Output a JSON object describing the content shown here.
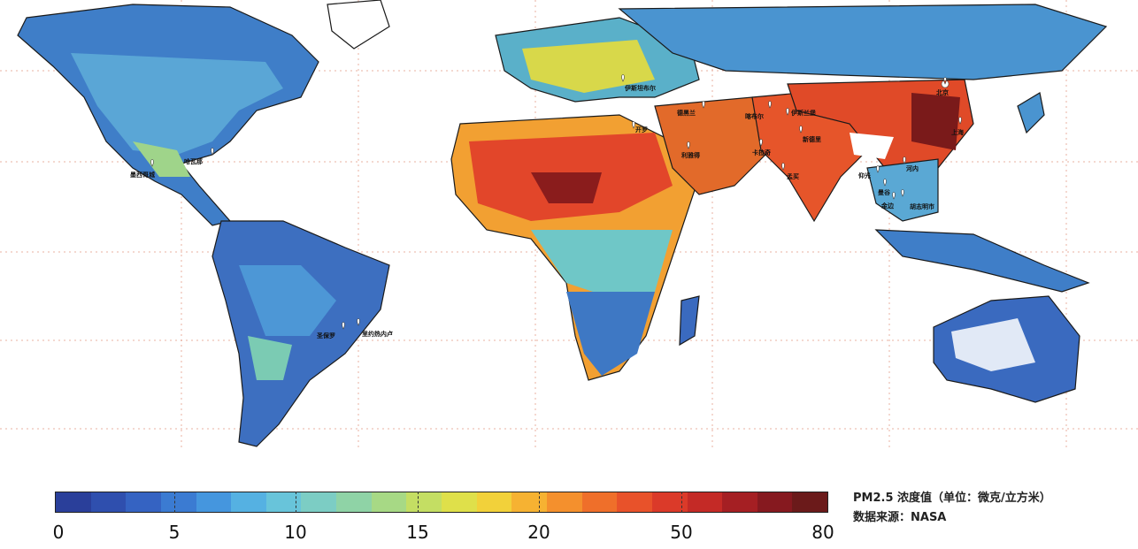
{
  "legend": {
    "title": "PM2.5 浓度值（单位：微克/立方米）",
    "source": "数据来源：NASA",
    "tick_labels": [
      "0",
      "5",
      "10",
      "15",
      "20",
      "50",
      "80"
    ],
    "colors": [
      "#2a3f9a",
      "#2f4fae",
      "#3563c2",
      "#3b7bd2",
      "#4596de",
      "#55b1e2",
      "#68c4da",
      "#7ccdc4",
      "#8fd3a6",
      "#a7d985",
      "#c4de63",
      "#dfe04a",
      "#f2d13a",
      "#f6b232",
      "#f4902d",
      "#ef6f2a",
      "#e8522a",
      "#db3a29",
      "#c42a26",
      "#a51f23",
      "#86191f",
      "#6b1a1a"
    ]
  },
  "cities": [
    {
      "name": "北京"
    },
    {
      "name": "上海"
    },
    {
      "name": "伊斯坦布尔"
    },
    {
      "name": "德黑兰"
    },
    {
      "name": "喀布尔"
    },
    {
      "name": "伊斯兰堡"
    },
    {
      "name": "新德里"
    },
    {
      "name": "开罗"
    },
    {
      "name": "利雅得"
    },
    {
      "name": "卡拉奇"
    },
    {
      "name": "孟买"
    },
    {
      "name": "河内"
    },
    {
      "name": "曼谷"
    },
    {
      "name": "仰光"
    },
    {
      "name": "金边"
    },
    {
      "name": "胡志明市"
    },
    {
      "name": "哈瓦那"
    },
    {
      "name": "墨西哥城"
    },
    {
      "name": "圣保罗"
    },
    {
      "name": "里约热内卢"
    }
  ]
}
